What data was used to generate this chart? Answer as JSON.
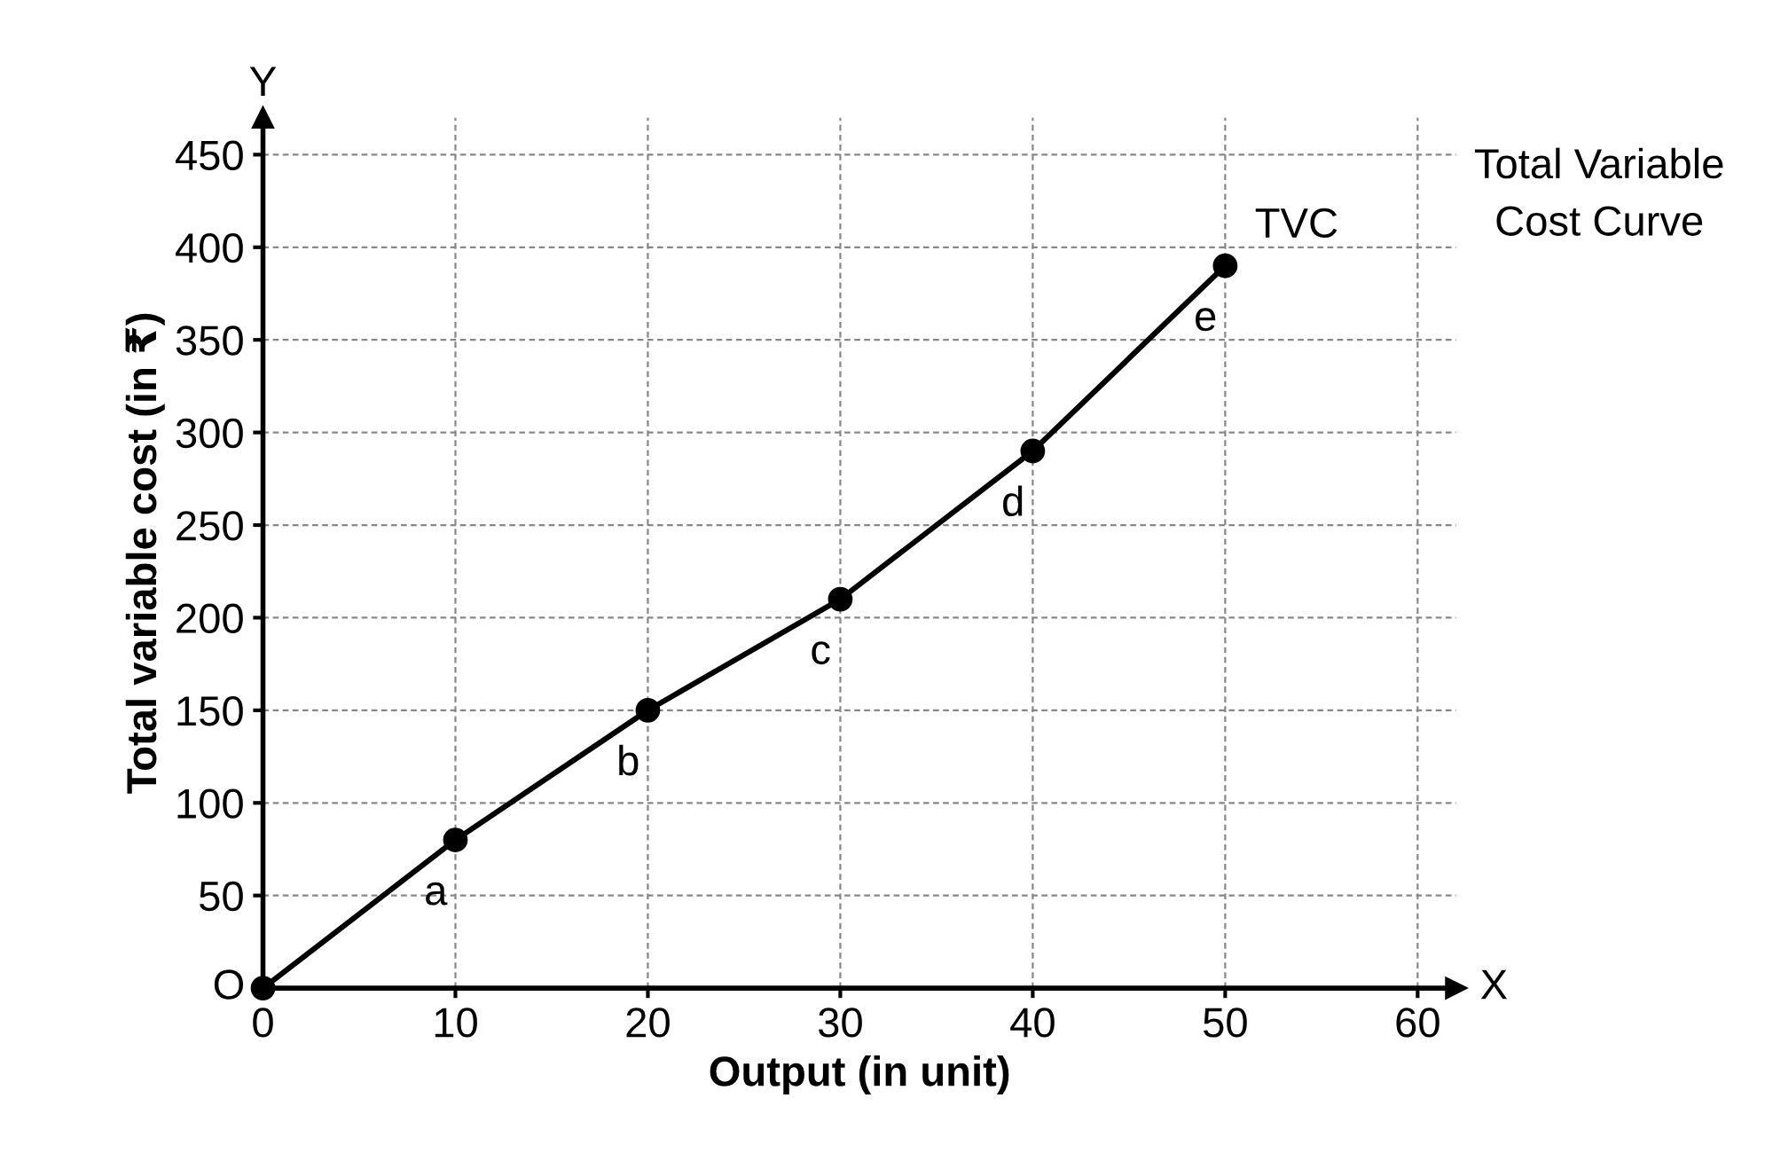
{
  "chart_data": {
    "type": "line",
    "xlabel": "Output (in unit)",
    "ylabel": "Total variable cost (in ₹)",
    "x": [
      0,
      10,
      20,
      30,
      40,
      50
    ],
    "series": [
      {
        "name": "TVC",
        "color": "#000000",
        "values": [
          0,
          80,
          150,
          210,
          290,
          390
        ]
      }
    ],
    "marker": "circle",
    "line_style": "solid",
    "xlim": [
      0,
      62
    ],
    "ylim": [
      0,
      470
    ],
    "xticks": [
      0,
      10,
      20,
      30,
      40,
      50,
      60
    ],
    "yticks": [
      {
        "value": 0,
        "label": null
      },
      50,
      100,
      150,
      200,
      250,
      300,
      350,
      400,
      450
    ],
    "grid": true,
    "annotations": [
      "O",
      "X",
      "Y",
      "Total Variable\nCost Curve",
      {
        "text": "a",
        "x": 10,
        "y": 80
      },
      {
        "text": "b",
        "x": 20,
        "y": 150
      },
      {
        "text": "c",
        "x": 30,
        "y": 210
      },
      {
        "text": "d",
        "x": 40,
        "y": 290
      },
      {
        "text": "e",
        "x": 50,
        "y": 390
      }
    ]
  }
}
